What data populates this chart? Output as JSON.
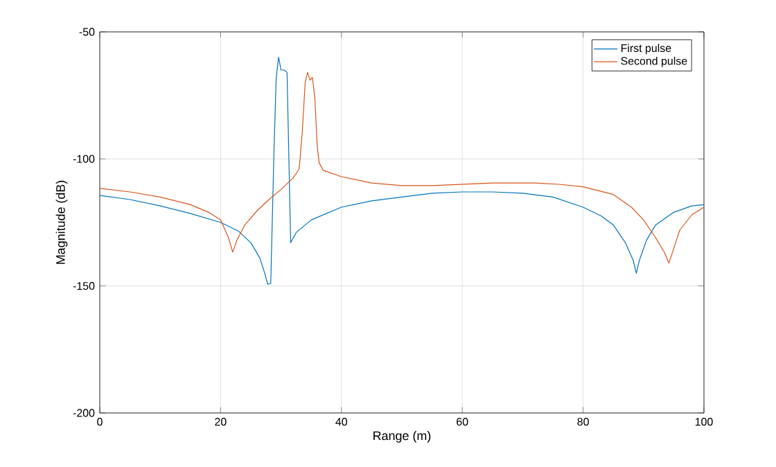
{
  "chart_data": {
    "type": "line",
    "xlabel": "Range (m)",
    "ylabel": "Magnitude (dB)",
    "xlim": [
      0,
      100
    ],
    "ylim": [
      -200,
      -50
    ],
    "xticks": [
      0,
      20,
      40,
      60,
      80,
      100
    ],
    "yticks": [
      -200,
      -150,
      -100,
      -50
    ],
    "grid": true,
    "legend": "top right",
    "series": [
      {
        "name": "First pulse",
        "color": "#0072bd",
        "x": [
          0,
          5,
          10,
          15,
          20,
          23,
          25,
          26.5,
          27.3,
          27.8,
          28.3,
          28.8,
          29.2,
          29.6,
          30,
          30.5,
          31,
          31.3,
          31.6,
          32.5,
          35,
          40,
          45,
          50,
          55,
          60,
          65,
          70,
          75,
          80,
          83,
          85,
          87,
          88.3,
          88.8,
          89.3,
          90.5,
          92,
          95,
          98,
          100
        ],
        "values": [
          -114.4,
          -116,
          -118.5,
          -121.5,
          -125,
          -128.5,
          -133,
          -139,
          -145,
          -149.3,
          -149,
          -100,
          -68,
          -60,
          -65,
          -65,
          -66,
          -100,
          -133,
          -129,
          -124,
          -119,
          -116.5,
          -115,
          -113.5,
          -113,
          -113,
          -113.5,
          -115,
          -119,
          -122.5,
          -126,
          -133,
          -140,
          -145,
          -140,
          -132,
          -126,
          -121,
          -118.5,
          -118
        ]
      },
      {
        "name": "Second pulse",
        "color": "#d95319",
        "x": [
          0,
          5,
          10,
          15,
          18,
          20,
          21.3,
          22,
          22.7,
          24,
          26,
          28,
          30,
          32,
          33,
          33.5,
          34,
          34.4,
          34.8,
          35.2,
          35.6,
          36,
          36.3,
          37,
          40,
          45,
          50,
          55,
          60,
          65,
          68,
          72,
          76,
          80,
          85,
          88,
          90,
          92,
          93.5,
          94.2,
          94.9,
          96,
          98,
          100
        ],
        "values": [
          -111.6,
          -113,
          -115,
          -118,
          -121,
          -124,
          -131,
          -136.7,
          -132,
          -126,
          -120.5,
          -116,
          -112,
          -107.5,
          -104,
          -90,
          -70,
          -66,
          -69,
          -68,
          -76,
          -95,
          -101.5,
          -104.5,
          -107,
          -109.5,
          -110.5,
          -110.5,
          -110,
          -109.5,
          -109.5,
          -109.5,
          -110,
          -111,
          -114,
          -119,
          -124,
          -131,
          -137,
          -141,
          -136,
          -128,
          -122,
          -119
        ]
      }
    ]
  }
}
